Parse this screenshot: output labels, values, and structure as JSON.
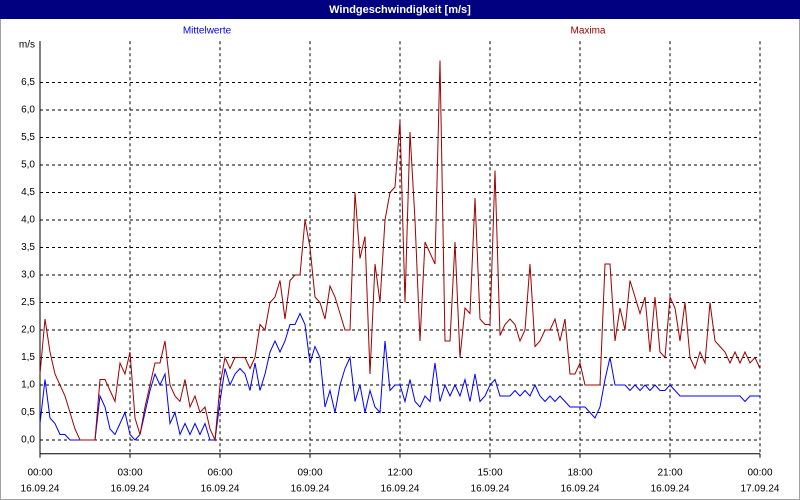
{
  "chart_data": {
    "type": "line",
    "title": "Windgeschwindigkeit [m/s]",
    "y_unit": "m/s",
    "xlim": [
      0,
      1440
    ],
    "ylim": [
      -0.25,
      7.25
    ],
    "grid": true,
    "xticks": [
      {
        "value": 0,
        "label": "00:00"
      },
      {
        "value": 180,
        "label": "03:00"
      },
      {
        "value": 360,
        "label": "06:00"
      },
      {
        "value": 540,
        "label": "09:00"
      },
      {
        "value": 720,
        "label": "12:00"
      },
      {
        "value": 900,
        "label": "15:00"
      },
      {
        "value": 1080,
        "label": "18:00"
      },
      {
        "value": 1260,
        "label": "21:00"
      },
      {
        "value": 1440,
        "label": "00:00"
      }
    ],
    "xtick_dates": [
      "16.09.24",
      "16.09.24",
      "16.09.24",
      "16.09.24",
      "16.09.24",
      "16.09.24",
      "16.09.24",
      "16.09.24",
      "17.09.24"
    ],
    "yticks": [
      {
        "value": 0,
        "label": "0,0"
      },
      {
        "value": 0.5,
        "label": "0,5"
      },
      {
        "value": 1,
        "label": "1,0"
      },
      {
        "value": 1.5,
        "label": "1,5"
      },
      {
        "value": 2,
        "label": "2,0"
      },
      {
        "value": 2.5,
        "label": "2,5"
      },
      {
        "value": 3,
        "label": "3,0"
      },
      {
        "value": 3.5,
        "label": "3,5"
      },
      {
        "value": 4,
        "label": "4,0"
      },
      {
        "value": 4.5,
        "label": "4,5"
      },
      {
        "value": 5,
        "label": "5,0"
      },
      {
        "value": 5.5,
        "label": "5,5"
      },
      {
        "value": 6,
        "label": "6,0"
      },
      {
        "value": 6.5,
        "label": "6,5"
      }
    ],
    "x": [
      0,
      10,
      20,
      30,
      40,
      50,
      60,
      70,
      80,
      90,
      100,
      110,
      120,
      130,
      140,
      150,
      160,
      170,
      180,
      190,
      200,
      210,
      220,
      230,
      240,
      250,
      260,
      270,
      280,
      290,
      300,
      310,
      320,
      330,
      340,
      350,
      360,
      370,
      380,
      390,
      400,
      410,
      420,
      430,
      440,
      450,
      460,
      470,
      480,
      490,
      500,
      510,
      520,
      530,
      540,
      550,
      560,
      570,
      580,
      590,
      600,
      610,
      620,
      630,
      640,
      650,
      660,
      670,
      680,
      690,
      700,
      710,
      720,
      730,
      740,
      750,
      760,
      770,
      780,
      790,
      800,
      810,
      820,
      830,
      840,
      850,
      860,
      870,
      880,
      890,
      900,
      910,
      920,
      930,
      940,
      950,
      960,
      970,
      980,
      990,
      1000,
      1010,
      1020,
      1030,
      1040,
      1050,
      1060,
      1070,
      1080,
      1090,
      1100,
      1110,
      1120,
      1130,
      1140,
      1150,
      1160,
      1170,
      1180,
      1190,
      1200,
      1210,
      1220,
      1230,
      1240,
      1250,
      1260,
      1270,
      1280,
      1290,
      1300,
      1310,
      1320,
      1330,
      1340,
      1350,
      1360,
      1370,
      1380,
      1390,
      1400,
      1410,
      1420,
      1430,
      1440
    ],
    "series": [
      {
        "name": "Mittelwerte",
        "color": "#0000ff",
        "values": [
          0.3,
          1.1,
          0.4,
          0.3,
          0.1,
          0.1,
          0,
          0,
          0,
          0,
          0,
          0,
          0.8,
          0.6,
          0.2,
          0.1,
          0.3,
          0.5,
          0.1,
          0,
          0.1,
          0.5,
          0.9,
          1.2,
          1.0,
          1.2,
          0.3,
          0.5,
          0.1,
          0.3,
          0.1,
          0.3,
          0.1,
          0.3,
          0,
          0,
          0.7,
          1.3,
          1.0,
          1.2,
          1.3,
          1.2,
          0.9,
          1.4,
          0.9,
          1.2,
          1.6,
          1.8,
          1.6,
          1.8,
          2.1,
          2.1,
          2.3,
          2.1,
          1.4,
          1.7,
          1.5,
          0.6,
          0.9,
          0.5,
          1.0,
          1.3,
          1.5,
          0.7,
          1.0,
          0.5,
          0.9,
          0.6,
          0.5,
          1.8,
          0.9,
          1.0,
          1.0,
          0.7,
          1.1,
          0.7,
          0.6,
          0.8,
          0.7,
          1.4,
          0.7,
          1.0,
          0.8,
          1.0,
          0.8,
          1.1,
          0.7,
          1.2,
          0.7,
          0.8,
          1.0,
          1.1,
          0.8,
          0.8,
          0.8,
          0.9,
          0.8,
          0.9,
          0.8,
          1.0,
          0.8,
          0.7,
          0.8,
          0.7,
          0.8,
          0.7,
          0.6,
          0.6,
          0.6,
          0.6,
          0.5,
          0.4,
          0.6,
          1.1,
          1.5,
          1.0,
          1.0,
          1.0,
          0.9,
          1.0,
          0.9,
          1.0,
          0.9,
          1.0,
          0.9,
          0.9,
          1.0,
          0.9,
          0.8,
          0.8,
          0.8,
          0.8,
          0.8,
          0.8,
          0.8,
          0.8,
          0.8,
          0.8,
          0.8,
          0.8,
          0.8,
          0.7,
          0.8,
          0.8,
          0.8
        ]
      },
      {
        "name": "Maxima",
        "color": "#a00000",
        "values": [
          1.2,
          2.2,
          1.6,
          1.2,
          1.0,
          0.8,
          0.5,
          0.2,
          0,
          0,
          0,
          0,
          1.1,
          1.1,
          0.9,
          0.7,
          1.4,
          1.2,
          1.6,
          0.4,
          0.1,
          0.6,
          1.0,
          1.4,
          1.4,
          1.8,
          1.0,
          0.8,
          0.7,
          1.1,
          0.6,
          0.8,
          0.5,
          0.6,
          0.2,
          0,
          1.0,
          1.5,
          1.3,
          1.5,
          1.5,
          1.5,
          1.3,
          1.5,
          2.1,
          2.0,
          2.5,
          2.6,
          2.9,
          2.2,
          2.9,
          3.0,
          3.0,
          4.0,
          3.5,
          2.6,
          2.5,
          2.2,
          2.8,
          2.6,
          2.3,
          2.0,
          2.0,
          4.5,
          3.3,
          3.7,
          1.2,
          3.2,
          2.5,
          4.0,
          4.5,
          4.6,
          5.8,
          2.5,
          5.6,
          4.0,
          1.8,
          3.6,
          3.4,
          3.2,
          6.9,
          1.8,
          1.8,
          3.6,
          1.5,
          2.4,
          2.3,
          4.4,
          2.2,
          2.1,
          2.1,
          4.9,
          1.9,
          2.1,
          2.2,
          2.1,
          1.8,
          2.0,
          3.2,
          1.7,
          1.8,
          2.0,
          2.0,
          2.2,
          1.8,
          2.2,
          1.2,
          1.2,
          1.4,
          1.0,
          1.0,
          1.0,
          1.0,
          3.2,
          3.2,
          1.8,
          2.4,
          2.0,
          2.9,
          2.6,
          2.3,
          2.6,
          1.6,
          2.6,
          1.6,
          1.5,
          2.6,
          2.4,
          1.8,
          2.5,
          1.5,
          1.3,
          1.6,
          1.4,
          2.5,
          1.8,
          1.7,
          1.6,
          1.4,
          1.6,
          1.4,
          1.6,
          1.4,
          1.5,
          1.3
        ]
      }
    ]
  }
}
